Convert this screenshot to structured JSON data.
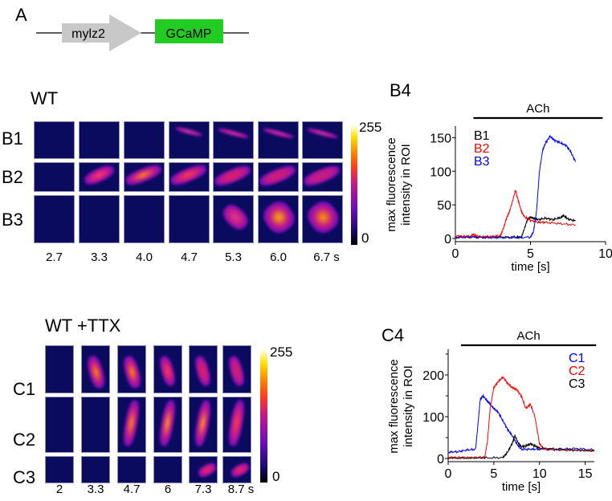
{
  "panelA": {
    "letter": "A",
    "promoter": "mylz2",
    "reporter": "GCaMP",
    "colors": {
      "promoter": "#c8c8c8",
      "reporter": "#22cc22"
    }
  },
  "panelB": {
    "condition": "WT",
    "rows": [
      "B1",
      "B2",
      "B3"
    ],
    "times": [
      "2.7",
      "3.3",
      "4.0",
      "4.7",
      "5.3",
      "6.0",
      "6.7 s"
    ],
    "colorbar": {
      "max": "255",
      "min": "0"
    }
  },
  "panelC": {
    "condition": "WT +TTX",
    "rows": [
      "C1",
      "C2",
      "C3"
    ],
    "times": [
      "2",
      "3.3",
      "4.7",
      "6",
      "7.3",
      "8.7 s"
    ],
    "colorbar": {
      "max": "255",
      "min": "0"
    }
  },
  "chart_data": [
    {
      "id": "B4",
      "type": "line",
      "letter": "B4",
      "title": "",
      "xlabel": "time [s]",
      "ylabel": "max fluorescence intensity in ROI",
      "ylabel_lines": [
        "max fluorescence",
        "intensity in ROI"
      ],
      "xlim": [
        0,
        10
      ],
      "ylim": [
        0,
        160
      ],
      "xticks": [
        0,
        5,
        10
      ],
      "yticks": [
        0,
        50,
        100,
        150
      ],
      "grid": false,
      "legend_position": "top-left",
      "annotation": {
        "label": "ACh",
        "start": 1.2,
        "end": 9.8
      },
      "series": [
        {
          "name": "B1",
          "color": "#000000",
          "x": [
            0,
            1,
            2,
            3,
            4,
            4.4,
            4.6,
            4.8,
            5.0,
            5.2,
            5.5,
            6.0,
            6.5,
            7.0,
            7.2,
            7.5,
            8.0
          ],
          "y": [
            2,
            2,
            2,
            2,
            2,
            2,
            15,
            28,
            32,
            30,
            28,
            30,
            28,
            31,
            34,
            29,
            26
          ]
        },
        {
          "name": "B2",
          "color": "#ff0000",
          "x": [
            0,
            0.5,
            1.0,
            1.2,
            1.5,
            2.0,
            2.5,
            3.0,
            3.2,
            3.4,
            3.6,
            3.8,
            4.0,
            4.2,
            4.4,
            4.6,
            5.0,
            5.5,
            6.0,
            7.0,
            8.0
          ],
          "y": [
            4,
            3,
            3,
            6,
            3,
            2,
            3,
            4,
            15,
            30,
            40,
            55,
            72,
            55,
            40,
            32,
            27,
            24,
            24,
            22,
            20
          ]
        },
        {
          "name": "B3",
          "color": "#0000ff",
          "x": [
            0,
            1,
            2,
            3,
            4,
            5.0,
            5.2,
            5.4,
            5.6,
            5.8,
            6.0,
            6.3,
            6.6,
            7.0,
            7.4,
            7.7,
            8.0
          ],
          "y": [
            1,
            2,
            1,
            1,
            1,
            2,
            10,
            40,
            100,
            130,
            142,
            152,
            146,
            142,
            138,
            128,
            114
          ]
        }
      ]
    },
    {
      "id": "C4",
      "type": "line",
      "letter": "C4",
      "title": "",
      "xlabel": "time [s]",
      "ylabel": "max fluorescence intensity in ROI",
      "ylabel_lines": [
        "max fluorescence",
        "intensity in ROI"
      ],
      "xlim": [
        0,
        16
      ],
      "ylim": [
        0,
        250
      ],
      "xticks": [
        0,
        5,
        10,
        15
      ],
      "yticks": [
        0,
        100,
        200
      ],
      "minor_yticks": [
        50,
        150,
        250
      ],
      "grid": false,
      "legend_position": "top-right",
      "annotation": {
        "label": "ACh",
        "start": 1.4,
        "end": 16.2
      },
      "series": [
        {
          "name": "C1",
          "color": "#0000ff",
          "x": [
            0,
            1,
            2,
            3.0,
            3.3,
            3.5,
            3.8,
            4.2,
            4.6,
            5.0,
            5.5,
            6.0,
            6.5,
            7.0,
            7.5,
            8.0,
            9,
            10,
            12,
            14,
            16
          ],
          "y": [
            15,
            16,
            20,
            22,
            90,
            140,
            150,
            140,
            130,
            120,
            110,
            90,
            70,
            55,
            35,
            22,
            22,
            22,
            22,
            24,
            20
          ]
        },
        {
          "name": "C2",
          "color": "#ff0000",
          "x": [
            0,
            1,
            2,
            3,
            4.0,
            4.3,
            4.6,
            5.0,
            5.5,
            6.0,
            6.5,
            7.0,
            7.5,
            8.0,
            8.5,
            9.0,
            9.5,
            10.0,
            10.5,
            12,
            14,
            16
          ],
          "y": [
            3,
            2,
            2,
            2,
            3,
            40,
            120,
            170,
            185,
            195,
            180,
            170,
            165,
            150,
            120,
            130,
            100,
            35,
            22,
            20,
            20,
            18
          ]
        },
        {
          "name": "C3",
          "color": "#000000",
          "x": [
            0,
            2,
            4,
            6.0,
            6.5,
            7.0,
            7.3,
            7.6,
            8.0,
            8.5,
            9.0,
            9.5,
            10,
            12,
            14,
            16
          ],
          "y": [
            0,
            0,
            1,
            2,
            15,
            35,
            55,
            40,
            28,
            30,
            35,
            30,
            25,
            22,
            20,
            18
          ]
        }
      ]
    }
  ]
}
